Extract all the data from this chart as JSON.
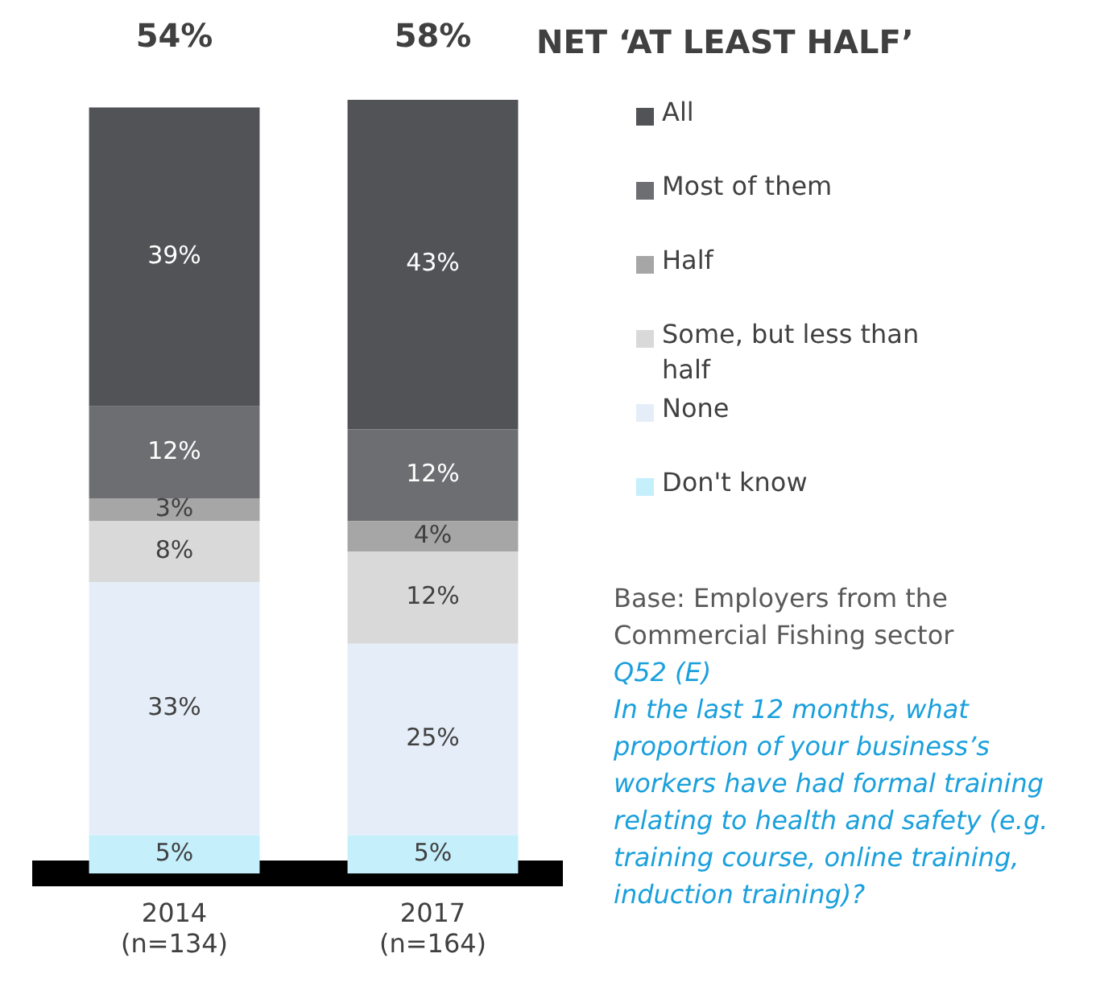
{
  "chart_data": {
    "type": "bar",
    "title": "NET ‘AT LEAST HALF’",
    "categories": [
      "2014\n(n=134)",
      "2017\n(n=164)"
    ],
    "stacked": true,
    "series": [
      {
        "name": "Don't know",
        "color": "#c5effb",
        "values": [
          5,
          5
        ],
        "value_labels": [
          "5%",
          "5%"
        ]
      },
      {
        "name": "None",
        "color": "#e5eef8",
        "values": [
          33,
          25
        ],
        "value_labels": [
          "33%",
          "25%"
        ]
      },
      {
        "name": "Some, but less than half",
        "color": "#d9d9d9",
        "values": [
          8,
          12
        ],
        "value_labels": [
          "8%",
          "12%"
        ]
      },
      {
        "name": "Half",
        "color": "#a6a6a6",
        "values": [
          3,
          4
        ],
        "value_labels": [
          "3%",
          "4%"
        ]
      },
      {
        "name": "Most of them",
        "color": "#6d6e71",
        "values": [
          12,
          12
        ],
        "value_labels": [
          "12%",
          "12%"
        ]
      },
      {
        "name": "All",
        "color": "#525357",
        "values": [
          39,
          43
        ],
        "value_labels": [
          "39%",
          "43%"
        ]
      }
    ],
    "ylim": [
      0,
      101
    ],
    "legend": "right",
    "grid": false,
    "tick_labels": "x",
    "annotations": [
      "54%",
      "58%",
      "Base: Employers from the Commercial Fishing sector",
      "Q52 (E)",
      "In the last 12 months, what proportion of your business’s workers have had formal training relating to health and safety  (e.g. training course, online training, induction training)?"
    ]
  }
}
